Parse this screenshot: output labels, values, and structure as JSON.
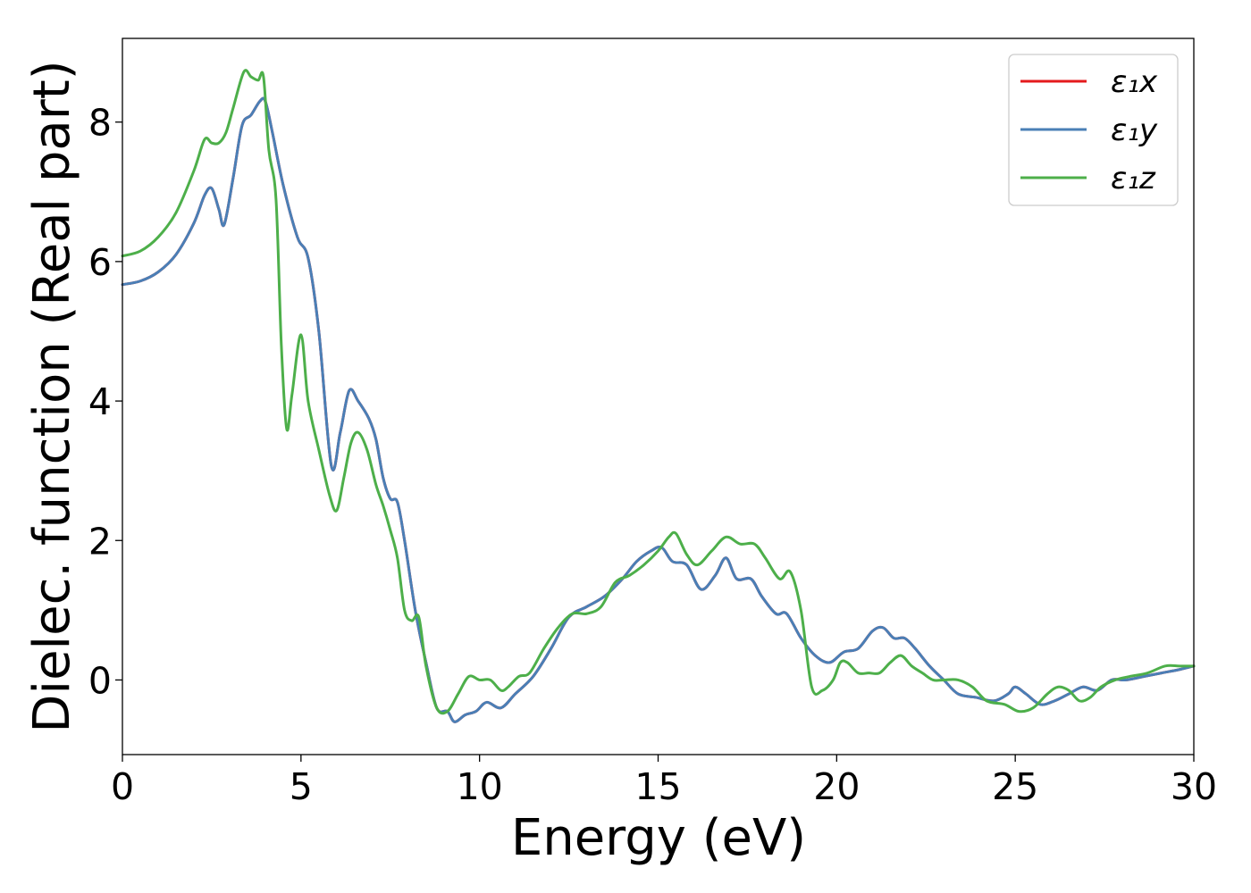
{
  "chart_data": {
    "type": "line",
    "xlabel": "Energy (eV)",
    "ylabel": "Dielec. function (Real part)",
    "xlim": [
      0,
      30
    ],
    "ylim": [
      -1.07,
      9.2
    ],
    "xticks": [
      0,
      5,
      10,
      15,
      20,
      25,
      30
    ],
    "yticks": [
      0,
      2,
      4,
      6,
      8
    ],
    "grid": false,
    "legend_position": "top-right",
    "series": [
      {
        "name": "ε₁x",
        "color": "#e41a1c",
        "x": [
          0,
          0.5,
          1,
          1.5,
          2,
          2.3,
          2.5,
          2.7,
          2.85,
          3.1,
          3.35,
          3.6,
          3.85,
          4.0,
          4.2,
          4.5,
          4.9,
          5.2,
          5.5,
          5.85,
          6.1,
          6.35,
          6.6,
          6.9,
          7.1,
          7.3,
          7.5,
          7.7,
          7.9,
          8.2,
          8.5,
          8.8,
          9.1,
          9.3,
          9.6,
          9.9,
          10.2,
          10.6,
          11.0,
          11.5,
          12.0,
          12.5,
          13.0,
          13.5,
          14.0,
          14.4,
          14.8,
          15.1,
          15.4,
          15.8,
          16.2,
          16.6,
          16.9,
          17.2,
          17.6,
          17.9,
          18.3,
          18.6,
          19.0,
          19.4,
          19.8,
          20.2,
          20.6,
          21.0,
          21.3,
          21.6,
          21.9,
          22.2,
          22.6,
          23.0,
          23.4,
          23.9,
          24.4,
          24.8,
          25.0,
          25.3,
          25.7,
          26.1,
          26.5,
          26.9,
          27.3,
          27.7,
          28.1,
          28.6,
          29.1,
          29.6,
          30.0
        ],
        "y": [
          5.67,
          5.72,
          5.85,
          6.1,
          6.55,
          6.95,
          7.05,
          6.75,
          6.53,
          7.2,
          7.95,
          8.1,
          8.3,
          8.3,
          7.85,
          7.1,
          6.35,
          6.05,
          5.0,
          3.07,
          3.55,
          4.15,
          4.0,
          3.75,
          3.45,
          2.9,
          2.6,
          2.55,
          2.0,
          1.0,
          0.25,
          -0.4,
          -0.45,
          -0.6,
          -0.5,
          -0.45,
          -0.32,
          -0.4,
          -0.2,
          0.05,
          0.45,
          0.9,
          1.05,
          1.2,
          1.45,
          1.7,
          1.85,
          1.9,
          1.7,
          1.65,
          1.3,
          1.5,
          1.75,
          1.45,
          1.45,
          1.2,
          0.95,
          0.95,
          0.6,
          0.35,
          0.25,
          0.4,
          0.45,
          0.7,
          0.75,
          0.6,
          0.6,
          0.45,
          0.2,
          0.0,
          -0.2,
          -0.25,
          -0.3,
          -0.2,
          -0.1,
          -0.2,
          -0.35,
          -0.3,
          -0.2,
          -0.1,
          -0.15,
          0.0,
          0.0,
          0.05,
          0.1,
          0.15,
          0.2
        ]
      },
      {
        "name": "ε₁y",
        "color": "#4a7fb6",
        "x": [
          0,
          0.5,
          1,
          1.5,
          2,
          2.3,
          2.5,
          2.7,
          2.85,
          3.1,
          3.35,
          3.6,
          3.85,
          4.0,
          4.2,
          4.5,
          4.9,
          5.2,
          5.5,
          5.85,
          6.1,
          6.35,
          6.6,
          6.9,
          7.1,
          7.3,
          7.5,
          7.7,
          7.9,
          8.2,
          8.5,
          8.8,
          9.1,
          9.3,
          9.6,
          9.9,
          10.2,
          10.6,
          11.0,
          11.5,
          12.0,
          12.5,
          13.0,
          13.5,
          14.0,
          14.4,
          14.8,
          15.1,
          15.4,
          15.8,
          16.2,
          16.6,
          16.9,
          17.2,
          17.6,
          17.9,
          18.3,
          18.6,
          19.0,
          19.4,
          19.8,
          20.2,
          20.6,
          21.0,
          21.3,
          21.6,
          21.9,
          22.2,
          22.6,
          23.0,
          23.4,
          23.9,
          24.4,
          24.8,
          25.0,
          25.3,
          25.7,
          26.1,
          26.5,
          26.9,
          27.3,
          27.7,
          28.1,
          28.6,
          29.1,
          29.6,
          30.0
        ],
        "y": [
          5.67,
          5.72,
          5.85,
          6.1,
          6.55,
          6.95,
          7.05,
          6.75,
          6.53,
          7.2,
          7.95,
          8.1,
          8.3,
          8.3,
          7.85,
          7.1,
          6.35,
          6.05,
          5.0,
          3.07,
          3.55,
          4.15,
          4.0,
          3.75,
          3.45,
          2.9,
          2.6,
          2.55,
          2.0,
          1.0,
          0.25,
          -0.4,
          -0.45,
          -0.6,
          -0.5,
          -0.45,
          -0.32,
          -0.4,
          -0.2,
          0.05,
          0.45,
          0.9,
          1.05,
          1.2,
          1.45,
          1.7,
          1.85,
          1.9,
          1.7,
          1.65,
          1.3,
          1.5,
          1.75,
          1.45,
          1.45,
          1.2,
          0.95,
          0.95,
          0.6,
          0.35,
          0.25,
          0.4,
          0.45,
          0.7,
          0.75,
          0.6,
          0.6,
          0.45,
          0.2,
          0.0,
          -0.2,
          -0.25,
          -0.3,
          -0.2,
          -0.1,
          -0.2,
          -0.35,
          -0.3,
          -0.2,
          -0.1,
          -0.15,
          0.0,
          0.0,
          0.05,
          0.1,
          0.15,
          0.2
        ]
      },
      {
        "name": "ε₁z",
        "color": "#4daf4a",
        "x": [
          0,
          0.5,
          1,
          1.5,
          2,
          2.3,
          2.5,
          2.7,
          2.9,
          3.1,
          3.4,
          3.6,
          3.8,
          3.95,
          4.1,
          4.3,
          4.45,
          4.6,
          4.75,
          5.0,
          5.2,
          5.5,
          5.8,
          6.0,
          6.2,
          6.4,
          6.6,
          6.85,
          7.1,
          7.3,
          7.5,
          7.7,
          7.9,
          8.1,
          8.3,
          8.5,
          8.8,
          9.1,
          9.4,
          9.7,
          10.0,
          10.3,
          10.6,
          10.8,
          11.1,
          11.4,
          11.8,
          12.2,
          12.6,
          13.0,
          13.4,
          13.8,
          14.2,
          14.6,
          15.0,
          15.3,
          15.5,
          15.8,
          16.1,
          16.5,
          16.9,
          17.3,
          17.7,
          18.0,
          18.4,
          18.7,
          19.0,
          19.3,
          19.6,
          19.9,
          20.1,
          20.3,
          20.6,
          20.9,
          21.2,
          21.5,
          21.8,
          22.1,
          22.4,
          22.7,
          23.0,
          23.4,
          23.8,
          24.2,
          24.7,
          25.1,
          25.5,
          25.9,
          26.2,
          26.5,
          26.8,
          27.1,
          27.4,
          27.8,
          28.2,
          28.7,
          29.2,
          29.6,
          30.0
        ],
        "y": [
          6.08,
          6.15,
          6.35,
          6.7,
          7.3,
          7.75,
          7.7,
          7.7,
          7.85,
          8.2,
          8.72,
          8.65,
          8.6,
          8.65,
          7.6,
          6.9,
          4.8,
          3.6,
          4.1,
          4.95,
          4.0,
          3.3,
          2.65,
          2.43,
          2.9,
          3.4,
          3.55,
          3.3,
          2.8,
          2.5,
          2.15,
          1.75,
          1.0,
          0.85,
          0.9,
          0.2,
          -0.4,
          -0.45,
          -0.2,
          0.05,
          0.0,
          0.0,
          -0.15,
          -0.1,
          0.05,
          0.1,
          0.45,
          0.75,
          0.95,
          0.95,
          1.05,
          1.4,
          1.5,
          1.65,
          1.85,
          2.05,
          2.1,
          1.8,
          1.65,
          1.85,
          2.05,
          1.95,
          1.95,
          1.75,
          1.45,
          1.55,
          1.0,
          -0.1,
          -0.15,
          0.0,
          0.25,
          0.25,
          0.1,
          0.1,
          0.1,
          0.25,
          0.35,
          0.2,
          0.1,
          0.0,
          0.0,
          0.0,
          -0.1,
          -0.3,
          -0.35,
          -0.45,
          -0.4,
          -0.2,
          -0.1,
          -0.15,
          -0.3,
          -0.25,
          -0.1,
          0.0,
          0.05,
          0.1,
          0.2,
          0.2,
          0.2
        ]
      }
    ]
  }
}
